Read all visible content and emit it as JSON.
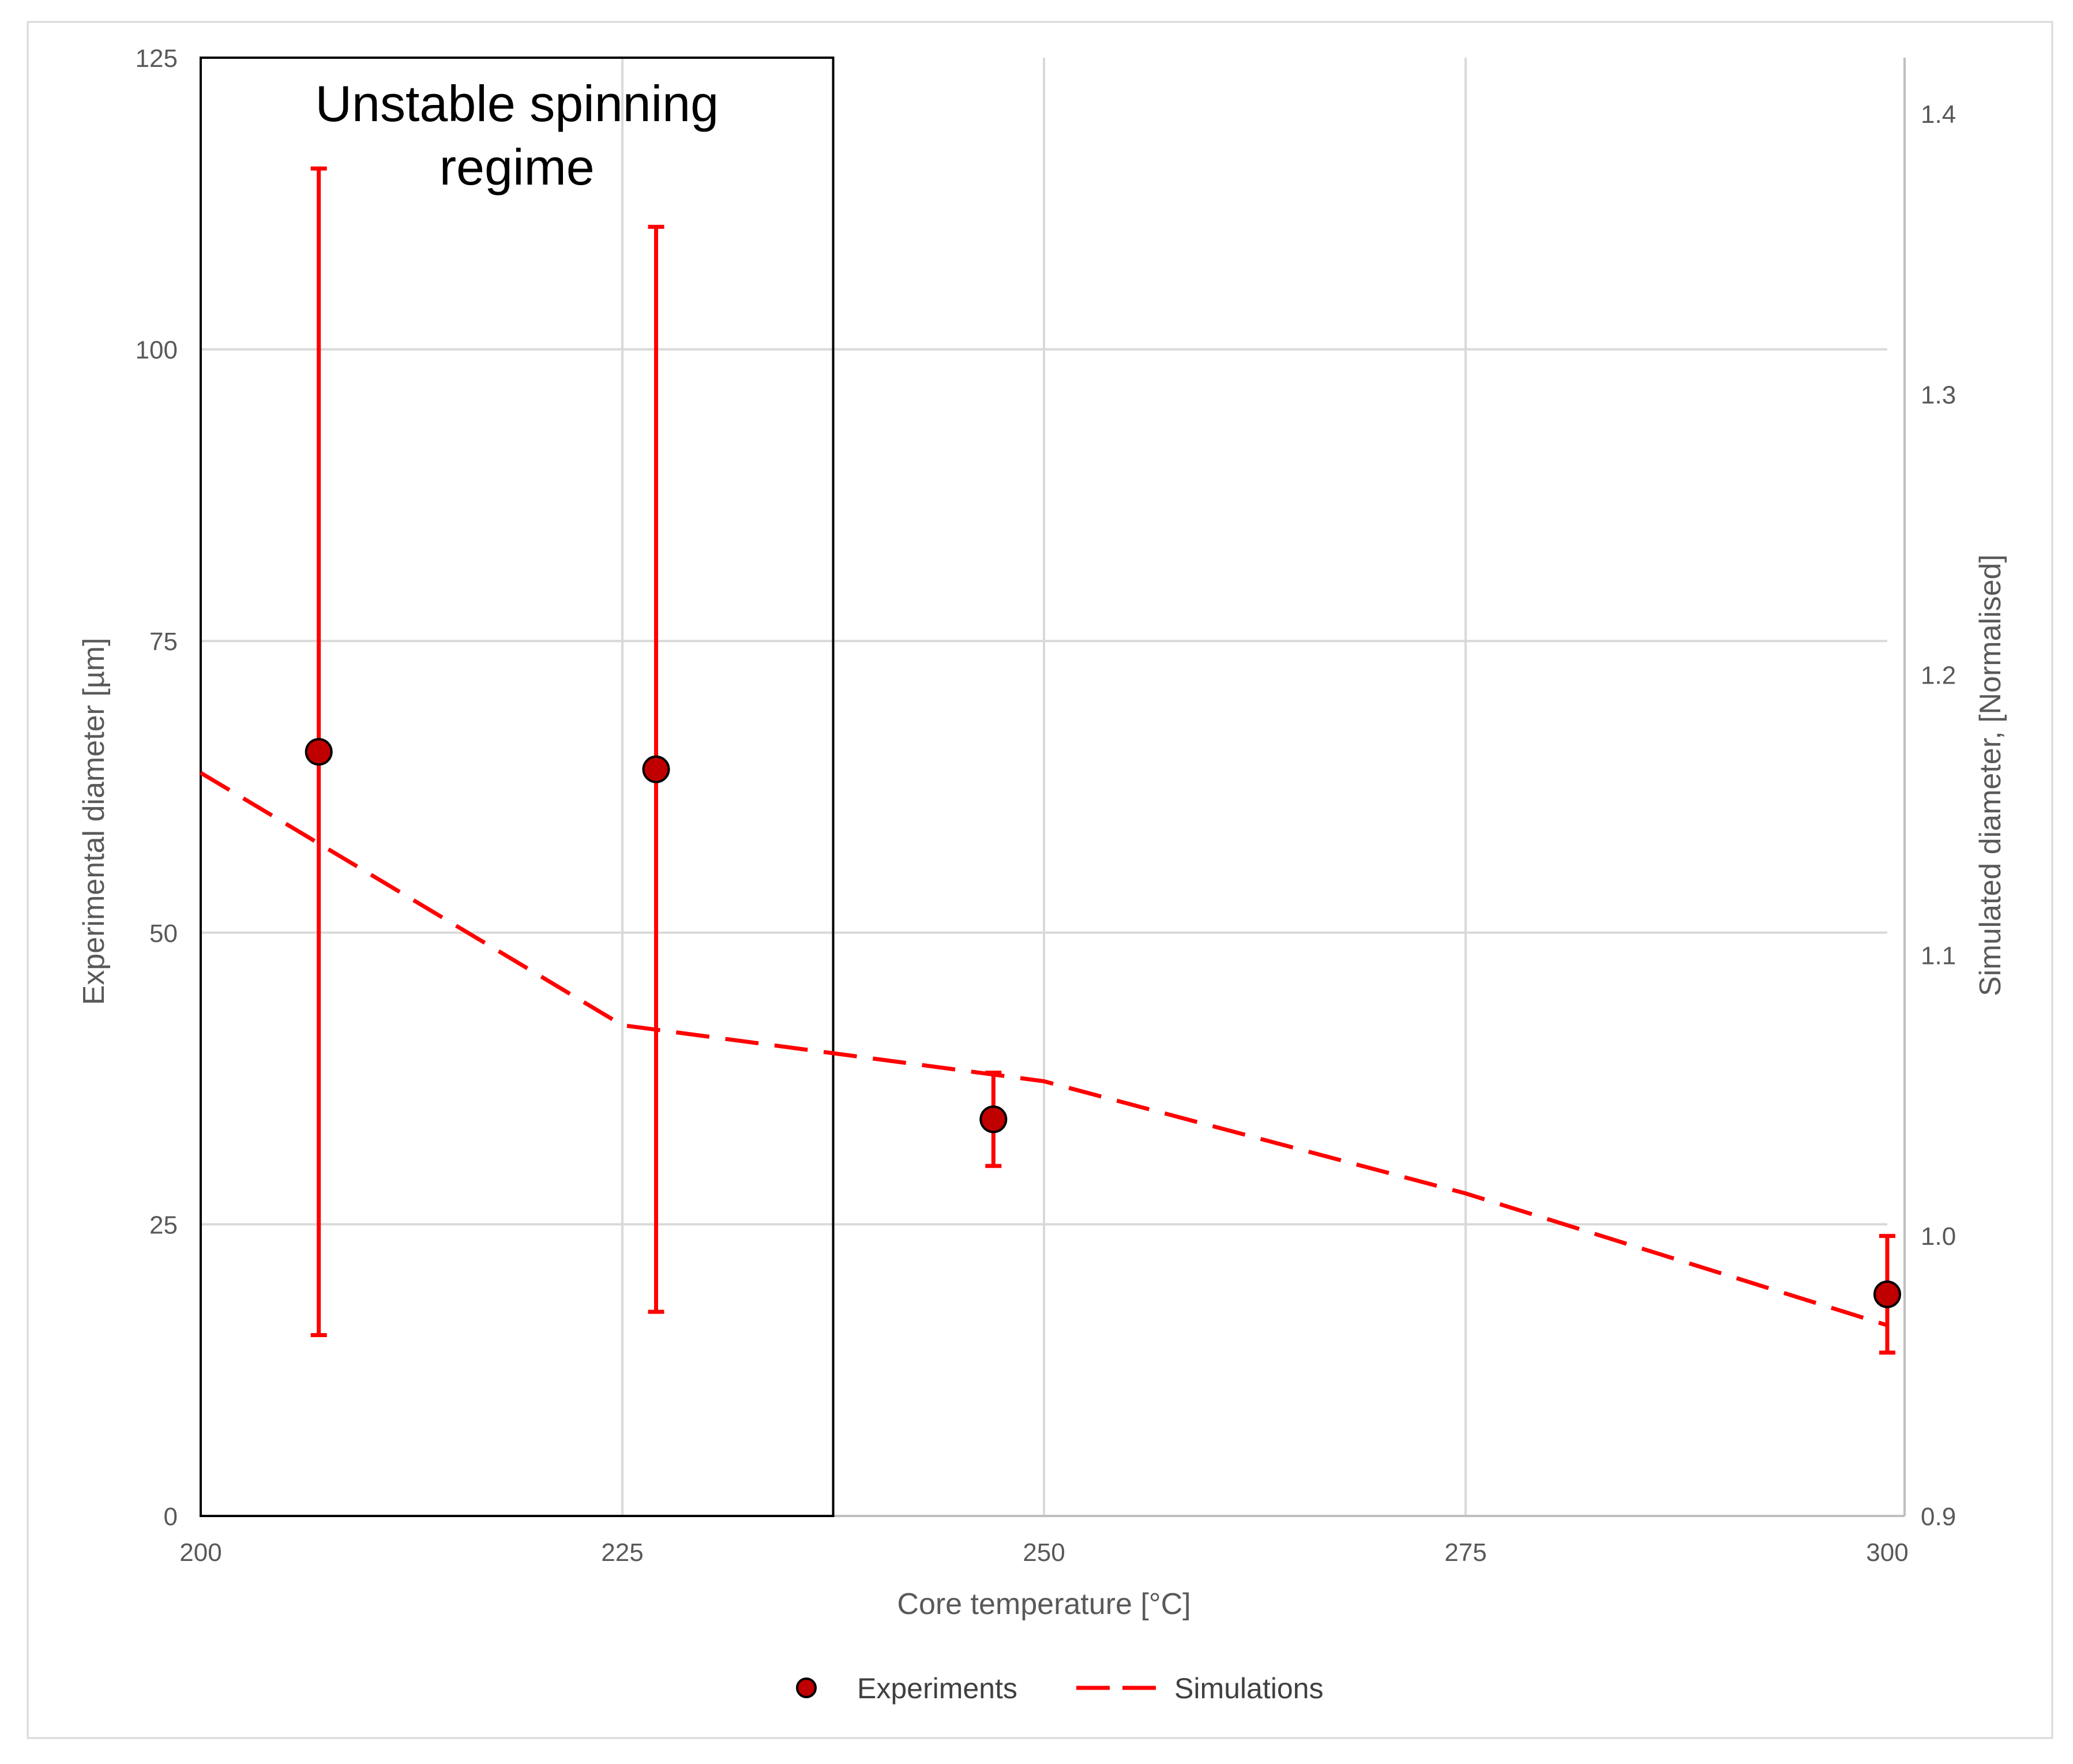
{
  "chart_data": {
    "type": "scatter",
    "xlabel": "Core temperature [°C]",
    "ylabel": "Experimental diameter [µm]",
    "y2label": "Simulated diameter, [Normalised]",
    "xlim": [
      200,
      300
    ],
    "ylim": [
      0,
      125
    ],
    "y2lim": [
      0.9,
      1.42
    ],
    "x_ticks": [
      "200",
      "225",
      "250",
      "275",
      "300"
    ],
    "y_ticks": [
      "0",
      "25",
      "50",
      "75",
      "100",
      "125"
    ],
    "y2_ticks": [
      "0.9",
      "1.0",
      "1.1",
      "1.2",
      "1.3",
      "1.4"
    ],
    "grid": true,
    "legend_position": "bottom",
    "annotation": {
      "lines": [
        "Unstable spinning",
        "regime"
      ],
      "x_range": [
        200,
        237.5
      ],
      "y_range": [
        0,
        125
      ]
    },
    "series": [
      {
        "name": "Experiments",
        "kind": "scatter",
        "axis": "left",
        "color": "#c00000",
        "error_bar_color": "#ff0000",
        "points": [
          {
            "x": 207,
            "y": 65.5,
            "y_low": 15.5,
            "y_high": 115.5
          },
          {
            "x": 227,
            "y": 64,
            "y_low": 17.5,
            "y_high": 110.5
          },
          {
            "x": 247,
            "y": 34,
            "y_low": 30,
            "y_high": 38
          },
          {
            "x": 300,
            "y": 19,
            "y_low": 14,
            "y_high": 24
          }
        ]
      },
      {
        "name": "Simulations",
        "kind": "line",
        "axis": "right",
        "color": "#ff0000",
        "dashed": true,
        "points": [
          {
            "x": 200,
            "y": 1.165
          },
          {
            "x": 225,
            "y": 1.075
          },
          {
            "x": 250,
            "y": 1.055
          },
          {
            "x": 275,
            "y": 1.015
          },
          {
            "x": 300,
            "y": 0.968
          }
        ]
      }
    ]
  }
}
